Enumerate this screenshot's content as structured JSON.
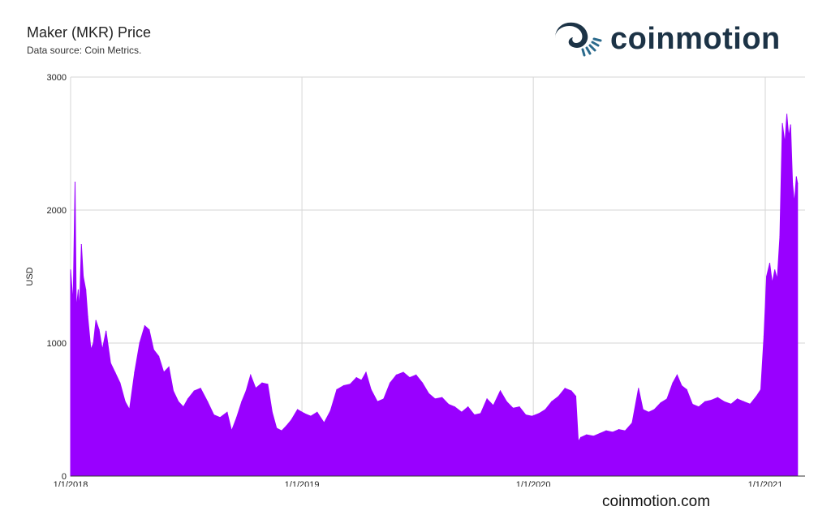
{
  "header": {
    "title": "Maker (MKR) Price",
    "subtitle": "Data source: Coin Metrics."
  },
  "brand": {
    "logo_text": "coinmotion",
    "logo_color": "#1c3346",
    "accent": "#2b6a8c",
    "footer_url": "coinmotion.com"
  },
  "chart_data": {
    "type": "area",
    "title": "Maker (MKR) Price",
    "subtitle": "Data source: Coin Metrics.",
    "ylabel": "USD",
    "xlabel": "",
    "ylim": [
      0,
      3000
    ],
    "yticks": [
      0,
      1000,
      2000,
      3000
    ],
    "xlim": [
      "2018-01-01",
      "2021-02-21"
    ],
    "xticks": [
      "1/1/2018",
      "1/1/2019",
      "1/1/2020",
      "1/1/2021"
    ],
    "grid": true,
    "color": "#9900ff",
    "series": [
      {
        "values": [
          [
            "2018-01-01",
            1550
          ],
          [
            "2018-01-05",
            1300
          ],
          [
            "2018-01-08",
            2210
          ],
          [
            "2018-01-10",
            1250
          ],
          [
            "2018-01-13",
            1400
          ],
          [
            "2018-01-15",
            1250
          ],
          [
            "2018-01-18",
            1740
          ],
          [
            "2018-01-21",
            1500
          ],
          [
            "2018-01-25",
            1400
          ],
          [
            "2018-01-28",
            1200
          ],
          [
            "2018-02-02",
            950
          ],
          [
            "2018-02-06",
            1000
          ],
          [
            "2018-02-10",
            1170
          ],
          [
            "2018-02-15",
            1100
          ],
          [
            "2018-02-20",
            950
          ],
          [
            "2018-02-26",
            1090
          ],
          [
            "2018-03-05",
            850
          ],
          [
            "2018-03-12",
            780
          ],
          [
            "2018-03-20",
            700
          ],
          [
            "2018-03-28",
            560
          ],
          [
            "2018-04-04",
            500
          ],
          [
            "2018-04-12",
            780
          ],
          [
            "2018-04-20",
            1000
          ],
          [
            "2018-04-28",
            1130
          ],
          [
            "2018-05-05",
            1100
          ],
          [
            "2018-05-12",
            950
          ],
          [
            "2018-05-20",
            900
          ],
          [
            "2018-05-28",
            780
          ],
          [
            "2018-06-05",
            820
          ],
          [
            "2018-06-12",
            640
          ],
          [
            "2018-06-20",
            560
          ],
          [
            "2018-06-28",
            520
          ],
          [
            "2018-07-05",
            580
          ],
          [
            "2018-07-15",
            640
          ],
          [
            "2018-07-25",
            660
          ],
          [
            "2018-08-05",
            560
          ],
          [
            "2018-08-15",
            460
          ],
          [
            "2018-08-25",
            440
          ],
          [
            "2018-09-05",
            480
          ],
          [
            "2018-09-12",
            340
          ],
          [
            "2018-09-20",
            440
          ],
          [
            "2018-09-28",
            560
          ],
          [
            "2018-10-05",
            640
          ],
          [
            "2018-10-12",
            760
          ],
          [
            "2018-10-20",
            660
          ],
          [
            "2018-10-30",
            700
          ],
          [
            "2018-11-08",
            690
          ],
          [
            "2018-11-15",
            480
          ],
          [
            "2018-11-22",
            360
          ],
          [
            "2018-11-30",
            340
          ],
          [
            "2018-12-08",
            380
          ],
          [
            "2018-12-15",
            420
          ],
          [
            "2018-12-25",
            500
          ],
          [
            "2019-01-05",
            470
          ],
          [
            "2019-01-15",
            450
          ],
          [
            "2019-01-25",
            480
          ],
          [
            "2019-02-05",
            400
          ],
          [
            "2019-02-15",
            490
          ],
          [
            "2019-02-25",
            650
          ],
          [
            "2019-03-08",
            680
          ],
          [
            "2019-03-18",
            690
          ],
          [
            "2019-03-28",
            740
          ],
          [
            "2019-04-05",
            720
          ],
          [
            "2019-04-12",
            780
          ],
          [
            "2019-04-20",
            650
          ],
          [
            "2019-04-30",
            560
          ],
          [
            "2019-05-10",
            580
          ],
          [
            "2019-05-20",
            700
          ],
          [
            "2019-05-30",
            760
          ],
          [
            "2019-06-10",
            780
          ],
          [
            "2019-06-20",
            740
          ],
          [
            "2019-06-30",
            760
          ],
          [
            "2019-07-10",
            700
          ],
          [
            "2019-07-20",
            620
          ],
          [
            "2019-07-30",
            580
          ],
          [
            "2019-08-10",
            590
          ],
          [
            "2019-08-20",
            540
          ],
          [
            "2019-08-30",
            520
          ],
          [
            "2019-09-10",
            480
          ],
          [
            "2019-09-20",
            520
          ],
          [
            "2019-09-30",
            460
          ],
          [
            "2019-10-10",
            470
          ],
          [
            "2019-10-20",
            580
          ],
          [
            "2019-10-30",
            530
          ],
          [
            "2019-11-10",
            640
          ],
          [
            "2019-11-20",
            560
          ],
          [
            "2019-11-30",
            510
          ],
          [
            "2019-12-10",
            520
          ],
          [
            "2019-12-20",
            460
          ],
          [
            "2019-12-30",
            450
          ],
          [
            "2020-01-10",
            470
          ],
          [
            "2020-01-20",
            500
          ],
          [
            "2020-01-30",
            560
          ],
          [
            "2020-02-10",
            600
          ],
          [
            "2020-02-20",
            660
          ],
          [
            "2020-03-01",
            640
          ],
          [
            "2020-03-08",
            600
          ],
          [
            "2020-03-12",
            260
          ],
          [
            "2020-03-16",
            290
          ],
          [
            "2020-03-25",
            310
          ],
          [
            "2020-04-05",
            300
          ],
          [
            "2020-04-15",
            320
          ],
          [
            "2020-04-25",
            340
          ],
          [
            "2020-05-05",
            330
          ],
          [
            "2020-05-15",
            350
          ],
          [
            "2020-05-25",
            340
          ],
          [
            "2020-06-05",
            400
          ],
          [
            "2020-06-15",
            660
          ],
          [
            "2020-06-22",
            500
          ],
          [
            "2020-07-01",
            480
          ],
          [
            "2020-07-10",
            500
          ],
          [
            "2020-07-20",
            550
          ],
          [
            "2020-07-30",
            580
          ],
          [
            "2020-08-08",
            700
          ],
          [
            "2020-08-15",
            760
          ],
          [
            "2020-08-22",
            680
          ],
          [
            "2020-08-30",
            650
          ],
          [
            "2020-09-08",
            540
          ],
          [
            "2020-09-18",
            520
          ],
          [
            "2020-09-28",
            560
          ],
          [
            "2020-10-08",
            570
          ],
          [
            "2020-10-18",
            590
          ],
          [
            "2020-10-28",
            560
          ],
          [
            "2020-11-08",
            540
          ],
          [
            "2020-11-18",
            580
          ],
          [
            "2020-11-28",
            560
          ],
          [
            "2020-12-08",
            540
          ],
          [
            "2020-12-18",
            600
          ],
          [
            "2020-12-25",
            650
          ],
          [
            "2020-12-30",
            1050
          ],
          [
            "2021-01-03",
            1500
          ],
          [
            "2021-01-08",
            1600
          ],
          [
            "2021-01-12",
            1450
          ],
          [
            "2021-01-16",
            1550
          ],
          [
            "2021-01-20",
            1480
          ],
          [
            "2021-01-24",
            1800
          ],
          [
            "2021-01-28",
            2650
          ],
          [
            "2021-02-01",
            2500
          ],
          [
            "2021-02-04",
            2720
          ],
          [
            "2021-02-07",
            2550
          ],
          [
            "2021-02-10",
            2640
          ],
          [
            "2021-02-13",
            2200
          ],
          [
            "2021-02-16",
            2050
          ],
          [
            "2021-02-19",
            2250
          ],
          [
            "2021-02-21",
            2200
          ]
        ]
      }
    ]
  }
}
